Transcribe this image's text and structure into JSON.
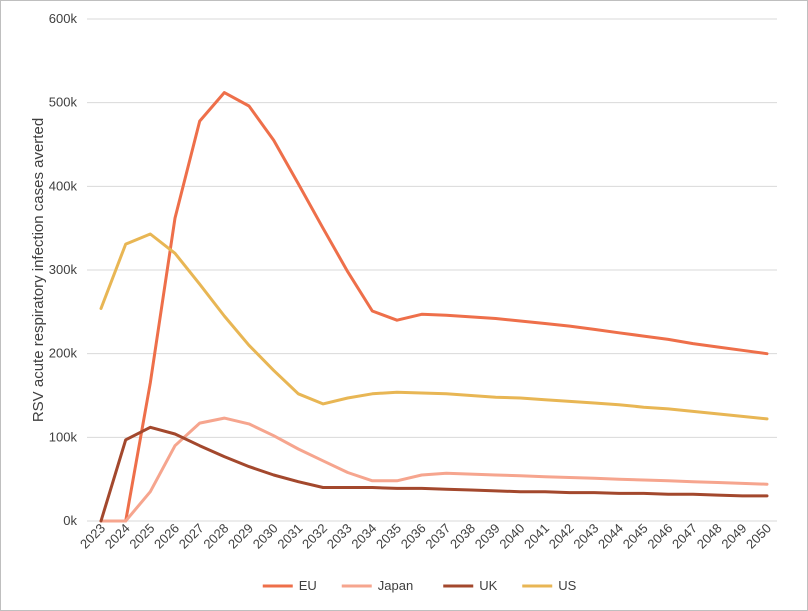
{
  "chart_data": {
    "type": "line",
    "title": "",
    "xlabel": "",
    "ylabel": "RSV acute respiratory infection cases averted",
    "x": [
      "2023",
      "2024",
      "2025",
      "2026",
      "2027",
      "2028",
      "2029",
      "2030",
      "2031",
      "2032",
      "2033",
      "2034",
      "2035",
      "2036",
      "2037",
      "2038",
      "2039",
      "2040",
      "2041",
      "2042",
      "2043",
      "2044",
      "2045",
      "2046",
      "2047",
      "2048",
      "2049",
      "2050"
    ],
    "ylim": [
      0,
      600000
    ],
    "y_ticks": [
      0,
      100000,
      200000,
      300000,
      400000,
      500000,
      600000
    ],
    "y_tick_labels": [
      "0k",
      "100k",
      "200k",
      "300k",
      "400k",
      "500k",
      "600k"
    ],
    "grid": true,
    "legend_position": "bottom",
    "series": [
      {
        "name": "EU",
        "color": "#ee6f4a",
        "values": [
          0,
          0,
          165000,
          362000,
          478000,
          512000,
          496000,
          455000,
          403000,
          350000,
          298000,
          251000,
          240000,
          247000,
          246000,
          244000,
          242000,
          239000,
          236000,
          233000,
          229000,
          225000,
          221000,
          217000,
          212000,
          208000,
          204000,
          200000
        ]
      },
      {
        "name": "Japan",
        "color": "#f6a58e",
        "values": [
          0,
          0,
          35000,
          90000,
          117000,
          123000,
          116000,
          102000,
          86000,
          72000,
          58000,
          48000,
          48000,
          55000,
          57000,
          56000,
          55000,
          54000,
          53000,
          52000,
          51000,
          50000,
          49000,
          48000,
          47000,
          46000,
          45000,
          44000
        ]
      },
      {
        "name": "UK",
        "color": "#a3482d",
        "values": [
          0,
          97000,
          112000,
          104000,
          90000,
          77000,
          65000,
          55000,
          47000,
          40000,
          40000,
          40000,
          39000,
          39000,
          38000,
          37000,
          36000,
          35000,
          35000,
          34000,
          34000,
          33000,
          33000,
          32000,
          32000,
          31000,
          30000,
          30000
        ]
      },
      {
        "name": "US",
        "color": "#e8b654",
        "values": [
          254000,
          331000,
          343000,
          320000,
          283000,
          245000,
          210000,
          180000,
          152000,
          140000,
          147000,
          152000,
          154000,
          153000,
          152000,
          150000,
          148000,
          147000,
          145000,
          143000,
          141000,
          139000,
          136000,
          134000,
          131000,
          128000,
          125000,
          122000
        ]
      }
    ]
  }
}
